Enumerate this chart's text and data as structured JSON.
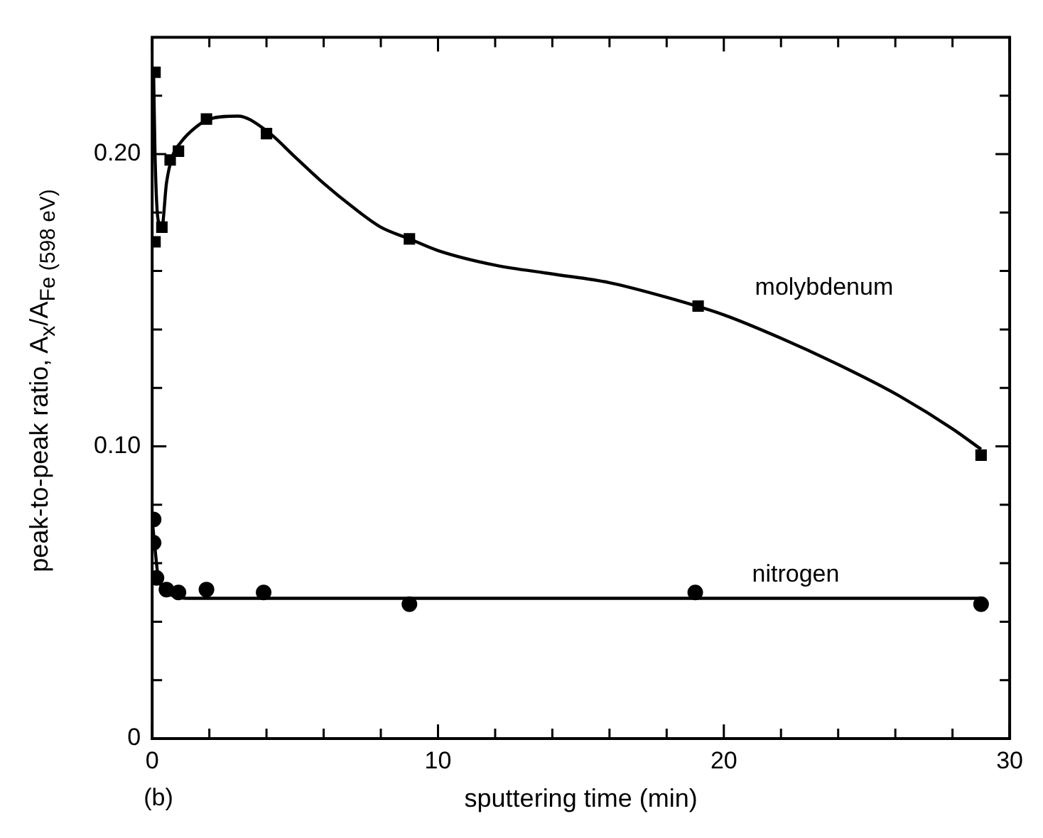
{
  "chart_data": {
    "type": "scatter",
    "xlabel": "sputtering time (min)",
    "ylabel": "peak-to-peak ratio, A$_{x}$/A$_{Fe (598 eV)}$",
    "xlim": [
      0,
      30
    ],
    "ylim": [
      0,
      0.24
    ],
    "xticks": [
      0,
      {
        "value": 2,
        "label": null
      },
      {
        "value": 4,
        "label": null
      },
      {
        "value": 6,
        "label": null
      },
      {
        "value": 8,
        "label": null
      },
      10,
      {
        "value": 12,
        "label": null
      },
      {
        "value": 14,
        "label": null
      },
      {
        "value": 16,
        "label": null
      },
      {
        "value": 18,
        "label": null
      },
      20,
      {
        "value": 22,
        "label": null
      },
      {
        "value": 24,
        "label": null
      },
      {
        "value": 26,
        "label": null
      },
      {
        "value": 28,
        "label": null
      },
      30
    ],
    "yticks": [
      0,
      {
        "value": 0.02,
        "label": null
      },
      {
        "value": 0.04,
        "label": null
      },
      {
        "value": 0.06,
        "label": null
      },
      {
        "value": 0.08,
        "label": null
      },
      {
        "value": 0.1,
        "label": "0.10"
      },
      {
        "value": 0.12,
        "label": null
      },
      {
        "value": 0.14,
        "label": null
      },
      {
        "value": 0.16,
        "label": null
      },
      {
        "value": 0.18,
        "label": null
      },
      {
        "value": 0.2,
        "label": "0.20"
      },
      {
        "value": 0.22,
        "label": null
      },
      {
        "value": 0.24,
        "label": null
      }
    ],
    "annotations": [
      "(b)"
    ],
    "series": [
      {
        "name": "molybdenum",
        "type": "scatter",
        "marker": "square",
        "color": "#000000",
        "x": [
          0.1,
          0.1,
          0.34,
          0.63,
          0.92,
          1.9,
          4.0,
          9.0,
          19.1,
          29.0
        ],
        "values": [
          0.228,
          0.17,
          0.175,
          0.198,
          0.201,
          0.212,
          0.207,
          0.171,
          0.148,
          0.097
        ]
      },
      {
        "type": "line",
        "marker": "none",
        "color": "#000000",
        "x": [
          0.05,
          0.1,
          0.2,
          0.34,
          0.5,
          0.7,
          1,
          1.5,
          2,
          3,
          4,
          5,
          6,
          7,
          8,
          9,
          10,
          12,
          14,
          16,
          18,
          20,
          22,
          24,
          26,
          28,
          29
        ],
        "values": [
          0.228,
          0.2,
          0.178,
          0.175,
          0.19,
          0.199,
          0.204,
          0.209,
          0.212,
          0.213,
          0.208,
          0.199,
          0.19,
          0.182,
          0.175,
          0.171,
          0.167,
          0.162,
          0.159,
          0.156,
          0.151,
          0.145,
          0.137,
          0.128,
          0.118,
          0.106,
          0.099
        ]
      },
      {
        "name": "nitrogen",
        "type": "scatter",
        "marker": "circle",
        "color": "#000000",
        "x": [
          0.05,
          0.05,
          0.15,
          0.5,
          0.92,
          1.9,
          3.9,
          9.0,
          19.0,
          29.0
        ],
        "values": [
          0.075,
          0.067,
          0.055,
          0.051,
          0.05,
          0.051,
          0.05,
          0.046,
          0.05,
          0.046
        ]
      },
      {
        "type": "line",
        "marker": "none",
        "color": "#000000",
        "x": [
          0,
          0.1,
          0.2,
          0.4,
          0.7,
          1.2,
          2,
          5,
          10,
          20,
          29
        ],
        "values": [
          0.075,
          0.065,
          0.056,
          0.051,
          0.049,
          0.048,
          0.048,
          0.048,
          0.048,
          0.048,
          0.048
        ]
      }
    ]
  }
}
